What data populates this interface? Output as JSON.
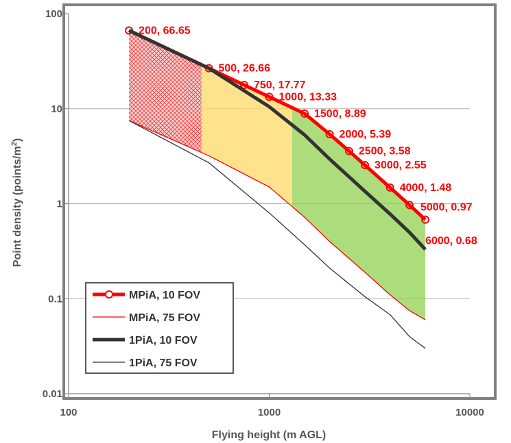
{
  "chart_data": {
    "type": "line",
    "title": "",
    "xlabel": "Flying height (m AGL)",
    "ylabel_main": "Point density (points/m",
    "ylabel_sup": "2",
    "ylabel_tail": ")",
    "x_scale": "log",
    "y_scale": "log",
    "xlim": [
      100,
      10000
    ],
    "ylim": [
      0.01,
      100
    ],
    "x_ticks": [
      {
        "value": 100,
        "label": "100"
      },
      {
        "value": 1000,
        "label": "1000"
      },
      {
        "value": 10000,
        "label": "10000"
      }
    ],
    "y_ticks": [
      {
        "value": 0.01,
        "label": "0.01"
      },
      {
        "value": 0.1,
        "label": "0.1"
      },
      {
        "value": 1,
        "label": "1"
      },
      {
        "value": 10,
        "label": "10"
      },
      {
        "value": 100,
        "label": "100"
      }
    ],
    "grid": "horizontal",
    "legend_position": "bottom-left",
    "series": [
      {
        "name": "MPiA, 10 FOV",
        "color": "#ff0000",
        "style": "thick-line-circle-markers",
        "x": [
          200,
          500,
          750,
          1000,
          1500,
          2000,
          2500,
          3000,
          4000,
          5000,
          6000
        ],
        "y": [
          66.65,
          26.66,
          17.77,
          13.33,
          8.89,
          5.39,
          3.58,
          2.55,
          1.48,
          0.97,
          0.68
        ]
      },
      {
        "name": "MPiA, 75 FOV",
        "color": "#ff0000",
        "style": "thin-line",
        "x": [
          200,
          500,
          1000,
          1500,
          2000,
          3000,
          4000,
          5000,
          6000
        ],
        "y": [
          7.5,
          3.2,
          1.5,
          0.72,
          0.4,
          0.19,
          0.11,
          0.075,
          0.06
        ]
      },
      {
        "name": "1PiA, 10 FOV",
        "color": "#333333",
        "style": "thick-line",
        "x": [
          200,
          500,
          1000,
          1500,
          2000,
          3000,
          4000,
          5000,
          6000
        ],
        "y": [
          66.65,
          26.66,
          10.5,
          5.3,
          2.95,
          1.35,
          0.78,
          0.5,
          0.33
        ]
      },
      {
        "name": "1PiA, 75 FOV",
        "color": "#333333",
        "style": "thin-line",
        "x": [
          200,
          500,
          1000,
          1500,
          2000,
          3000,
          4000,
          5000,
          6000
        ],
        "y": [
          7.5,
          2.7,
          0.8,
          0.37,
          0.21,
          0.105,
          0.068,
          0.04,
          0.03
        ]
      }
    ],
    "point_labels": [
      {
        "x": 200,
        "y": 66.65,
        "text": "200, 66.65"
      },
      {
        "x": 500,
        "y": 26.66,
        "text": "500, 26.66"
      },
      {
        "x": 750,
        "y": 17.77,
        "text": "750, 17.77"
      },
      {
        "x": 1000,
        "y": 13.33,
        "text": "1000, 13.33"
      },
      {
        "x": 1500,
        "y": 8.89,
        "text": "1500, 8.89"
      },
      {
        "x": 2000,
        "y": 5.39,
        "text": "2000, 5.39"
      },
      {
        "x": 2500,
        "y": 3.58,
        "text": "2500, 3.58"
      },
      {
        "x": 3000,
        "y": 2.55,
        "text": "3000, 2.55"
      },
      {
        "x": 4000,
        "y": 1.48,
        "text": "4000, 1.48"
      },
      {
        "x": 5000,
        "y": 0.97,
        "text": "5000, 0.97"
      },
      {
        "x": 6000,
        "y": 0.68,
        "text": "6000, 0.68"
      }
    ],
    "shaded_regions": [
      {
        "color": "#ff8080",
        "pattern": "crosshatch",
        "x_range": [
          200,
          460
        ],
        "top_series": "1PiA, 10 FOV",
        "bottom_series": "MPiA, 75 FOV"
      },
      {
        "color": "#ffd966",
        "pattern": "solid",
        "x_range": [
          460,
          1300
        ],
        "top_series": "MPiA, 10 FOV",
        "bottom_series": "MPiA, 75 FOV"
      },
      {
        "color": "#92d050",
        "pattern": "solid",
        "x_range": [
          1300,
          6000
        ],
        "top_series": "MPiA, 10 FOV",
        "bottom_series": "MPiA, 75 FOV"
      }
    ]
  }
}
